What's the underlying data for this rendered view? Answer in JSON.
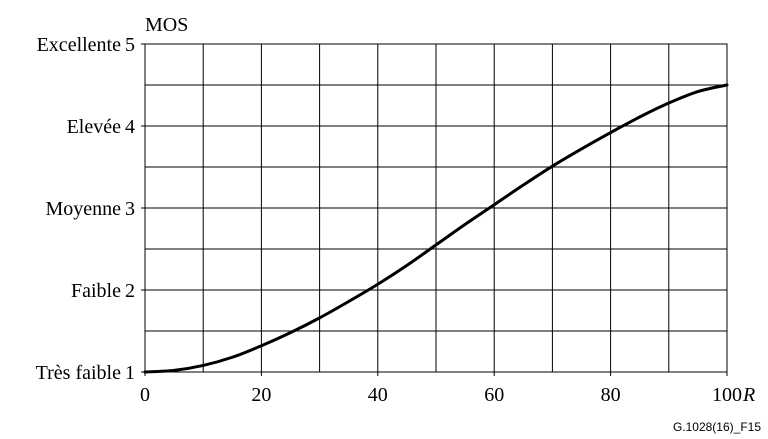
{
  "chart_data": {
    "type": "line",
    "title": "",
    "ylabel": "MOS",
    "xlabel": "R",
    "xlim": [
      0,
      100
    ],
    "ylim": [
      1,
      5
    ],
    "x_ticks": [
      0,
      20,
      40,
      60,
      80,
      100
    ],
    "x_tick_labels": [
      "0",
      "20",
      "40",
      "60",
      "80",
      "100"
    ],
    "y_tick_labels": [
      {
        "value": 5,
        "name": "Excellente",
        "num": "5"
      },
      {
        "value": 4,
        "name": "Elevée",
        "num": "4"
      },
      {
        "value": 3,
        "name": "Moyenne",
        "num": "3"
      },
      {
        "value": 2,
        "name": "Faible",
        "num": "2"
      },
      {
        "value": 1,
        "name": "Très faible",
        "num": "1"
      }
    ],
    "grid": true,
    "series": [
      {
        "x": [
          0,
          5,
          10,
          15,
          20,
          25,
          30,
          35,
          40,
          45,
          50,
          55,
          60,
          65,
          70,
          75,
          80,
          85,
          90,
          95,
          100
        ],
        "y": [
          1.0,
          1.02,
          1.08,
          1.18,
          1.32,
          1.48,
          1.66,
          1.86,
          2.07,
          2.3,
          2.55,
          2.8,
          3.04,
          3.28,
          3.51,
          3.72,
          3.92,
          4.11,
          4.28,
          4.42,
          4.5
        ]
      }
    ],
    "annotations": [
      "G.1028(16)_F15"
    ],
    "colors": {
      "line": "#000000",
      "grid": "#000000",
      "text": "#000000"
    }
  }
}
